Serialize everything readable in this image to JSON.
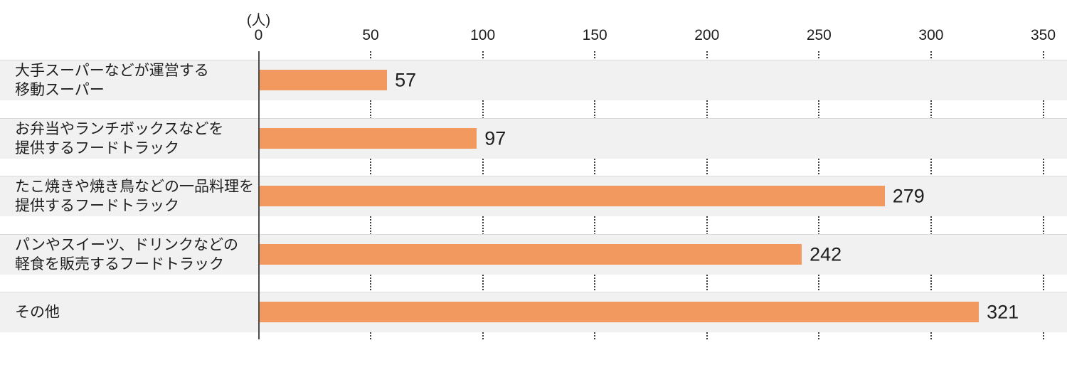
{
  "chart_data": {
    "type": "bar",
    "orientation": "horizontal",
    "title": "",
    "unit_label": "(人)",
    "xlabel": "",
    "ylabel": "",
    "xlim": [
      0,
      350
    ],
    "x_ticks": [
      0,
      50,
      100,
      150,
      200,
      250,
      300,
      350
    ],
    "grid": "dotted vertical tick marks shown only in gaps between row bands",
    "legend": "none",
    "categories": [
      [
        "大手スーパーなどが運営する",
        "移動スーパー"
      ],
      [
        "お弁当やランチボックスなどを",
        "提供するフードトラック"
      ],
      [
        "たこ焼きや焼き鳥などの一品料理を",
        "提供するフードトラック"
      ],
      [
        "パンやスイーツ、ドリンクなどの",
        "軽食を販売するフードトラック"
      ],
      [
        "その他"
      ]
    ],
    "values": [
      57,
      97,
      279,
      242,
      321
    ],
    "value_labels": [
      "57",
      "97",
      "279",
      "242",
      "321"
    ],
    "colors": {
      "bar": "#F2995F",
      "row_band": "#F1F1F1",
      "band_border": "#DBDBDB",
      "axis_line": "#4D4D4D",
      "tick_dots": "#3C3C3C",
      "text": "#1E1E1E",
      "background": "#FFFFFF"
    }
  }
}
